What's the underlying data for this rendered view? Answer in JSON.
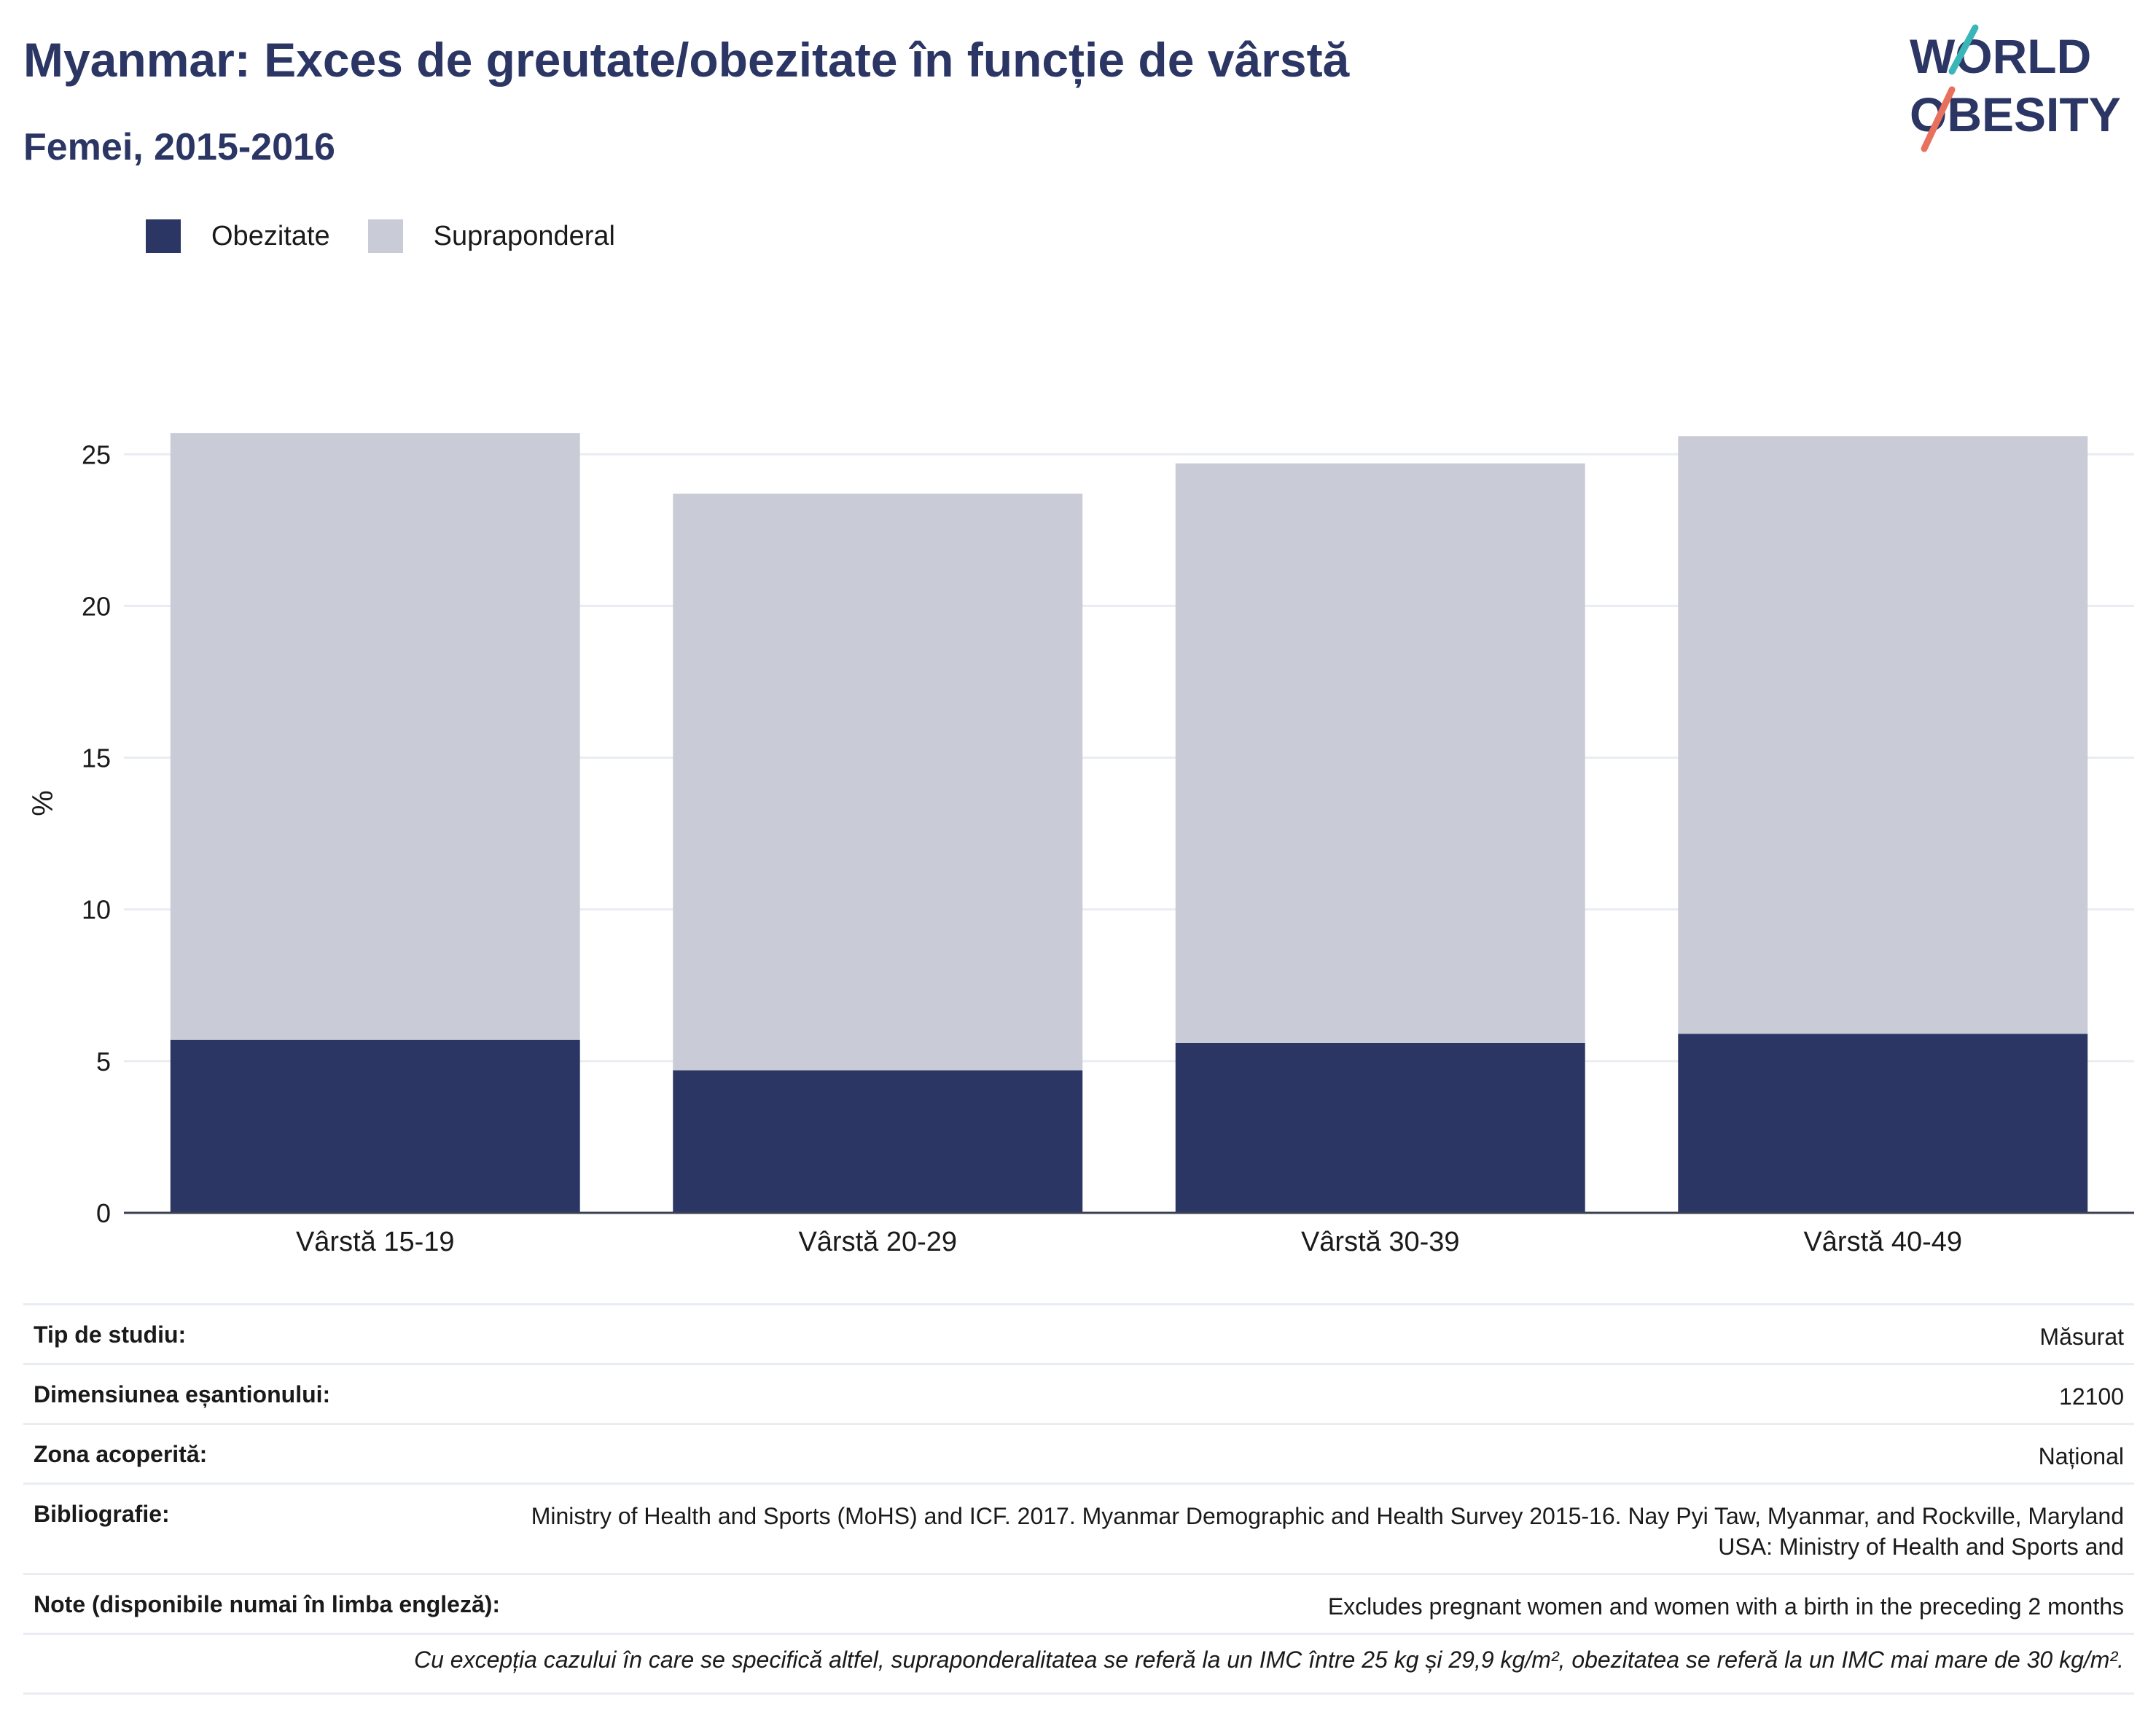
{
  "header": {
    "title": "Myanmar: Exces de greutate/obezitate în funcție de vârstă",
    "subtitle": "Femei, 2015-2016",
    "logo_text": "WORLD OBESITY"
  },
  "colors": {
    "obesity": "#2b3664",
    "overweight": "#c9ccd7",
    "title": "#2b3664",
    "logo_teal": "#3ab5b8",
    "logo_coral": "#e8705d",
    "gridline": "#e9ecf2"
  },
  "legend": {
    "items": [
      {
        "label": "Obezitate",
        "color": "#2b3664"
      },
      {
        "label": "Supraponderal",
        "color": "#c9ccd7"
      }
    ]
  },
  "chart_data": {
    "type": "bar",
    "stacked": true,
    "categories": [
      "Vârstă 15-19",
      "Vârstă 20-29",
      "Vârstă 30-39",
      "Vârstă 40-49"
    ],
    "series": [
      {
        "name": "Obezitate",
        "values": [
          5.7,
          4.7,
          5.6,
          5.9
        ]
      },
      {
        "name": "Supraponderal",
        "values": [
          20.0,
          19.0,
          19.1,
          19.7
        ]
      }
    ],
    "title": "Myanmar: Exces de greutate/obezitate în funcție de vârstă",
    "subtitle": "Femei, 2015-2016",
    "xlabel": "",
    "ylabel": "%",
    "ylim": [
      0,
      27
    ],
    "yticks": [
      0,
      5,
      10,
      15,
      20,
      25
    ],
    "grid": true,
    "legend_position": "top-left"
  },
  "meta": {
    "rows": [
      {
        "key": "Tip de studiu:",
        "value": "Măsurat"
      },
      {
        "key": "Dimensiunea eșantionului:",
        "value": "12100"
      },
      {
        "key": "Zona acoperită:",
        "value": "Național"
      },
      {
        "key": "Bibliografie:",
        "value": "Ministry of Health and Sports (MoHS) and ICF. 2017. Myanmar Demographic and Health Survey 2015-16. Nay Pyi Taw, Myanmar, and Rockville, Maryland USA: Ministry of Health and Sports and"
      },
      {
        "key": "Note (disponibile numai în limba engleză):",
        "value": "Excludes pregnant women and women with a birth in the preceding 2 months"
      }
    ],
    "footnote": "Cu excepția cazului în care se specifică altfel, supraponderalitatea se referă la un IMC între 25 kg și 29,9 kg/m², obezitatea se referă la un IMC mai mare de 30 kg/m²."
  }
}
